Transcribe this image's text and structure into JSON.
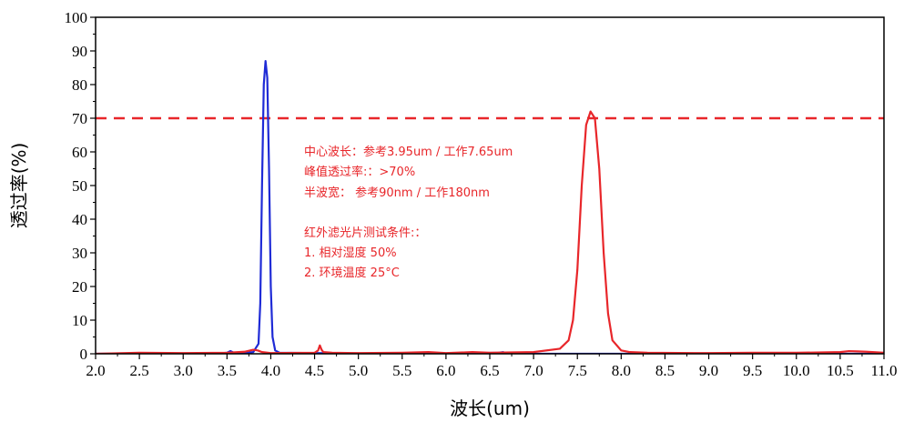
{
  "chart_data": {
    "type": "line",
    "xlabel": "波长(um)",
    "ylabel": "透过率(%)",
    "xlim": [
      2.0,
      11.0
    ],
    "ylim": [
      0,
      100
    ],
    "xticks": [
      "2.0",
      "2.5",
      "3.0",
      "3.5",
      "4.0",
      "4.5",
      "5.0",
      "5.5",
      "6.0",
      "6.5",
      "7.0",
      "7.5",
      "8.0",
      "8.5",
      "9.0",
      "9.5",
      "10.0",
      "10.5",
      "11.0"
    ],
    "yticks": [
      "0",
      "10",
      "20",
      "30",
      "40",
      "50",
      "60",
      "70",
      "80",
      "90",
      "100"
    ],
    "grid": false,
    "reference_line": {
      "y": 70,
      "color": "#e8262a",
      "style": "dashed"
    },
    "series": [
      {
        "color": "#1f2bd6",
        "x": [
          2.0,
          2.5,
          3.0,
          3.4,
          3.5,
          3.54,
          3.58,
          3.7,
          3.8,
          3.86,
          3.88,
          3.9,
          3.92,
          3.94,
          3.96,
          3.98,
          4.0,
          4.02,
          4.05,
          4.1,
          4.5,
          5.0,
          6.0,
          6.6,
          6.65,
          6.7,
          7.0,
          8.0,
          9.0,
          10.0,
          11.0
        ],
        "y": [
          0,
          0,
          0,
          0.1,
          0.3,
          0.8,
          0.3,
          0.2,
          0.5,
          3,
          15,
          50,
          80,
          87,
          82,
          55,
          20,
          5,
          1,
          0.3,
          0.2,
          0.1,
          0,
          0.3,
          0.5,
          0.2,
          0,
          0,
          0,
          0,
          0
        ]
      },
      {
        "color": "#e8262a",
        "x": [
          2.0,
          2.5,
          3.0,
          3.5,
          3.7,
          3.8,
          3.85,
          3.9,
          4.0,
          4.5,
          4.54,
          4.56,
          4.58,
          4.6,
          4.7,
          5.0,
          5.5,
          5.8,
          6.0,
          6.3,
          6.5,
          7.0,
          7.3,
          7.4,
          7.45,
          7.5,
          7.55,
          7.6,
          7.65,
          7.7,
          7.75,
          7.8,
          7.85,
          7.9,
          8.0,
          8.1,
          8.3,
          9.0,
          9.5,
          10.0,
          10.5,
          10.6,
          10.7,
          10.8,
          11.0
        ],
        "y": [
          0,
          0.3,
          0.2,
          0.3,
          0.6,
          1.2,
          1.0,
          0.5,
          0.2,
          0.3,
          1.0,
          2.5,
          1.2,
          0.5,
          0.3,
          0.2,
          0.3,
          0.5,
          0.2,
          0.5,
          0.3,
          0.5,
          1.5,
          4,
          10,
          25,
          50,
          68,
          72,
          70,
          55,
          30,
          12,
          4,
          1,
          0.5,
          0.3,
          0.2,
          0.3,
          0.3,
          0.5,
          0.8,
          0.7,
          0.6,
          0.3
        ]
      }
    ],
    "annotations": [
      "中心波长：参考3.95um / 工作7.65um",
      "峰值透过率:：>70%",
      "半波宽：  参考90nm / 工作180nm",
      "红外滤光片测试条件:：",
      "1. 相对湿度 50%",
      "2. 环境温度 25°C"
    ],
    "annotation_color": "#e8262a"
  }
}
